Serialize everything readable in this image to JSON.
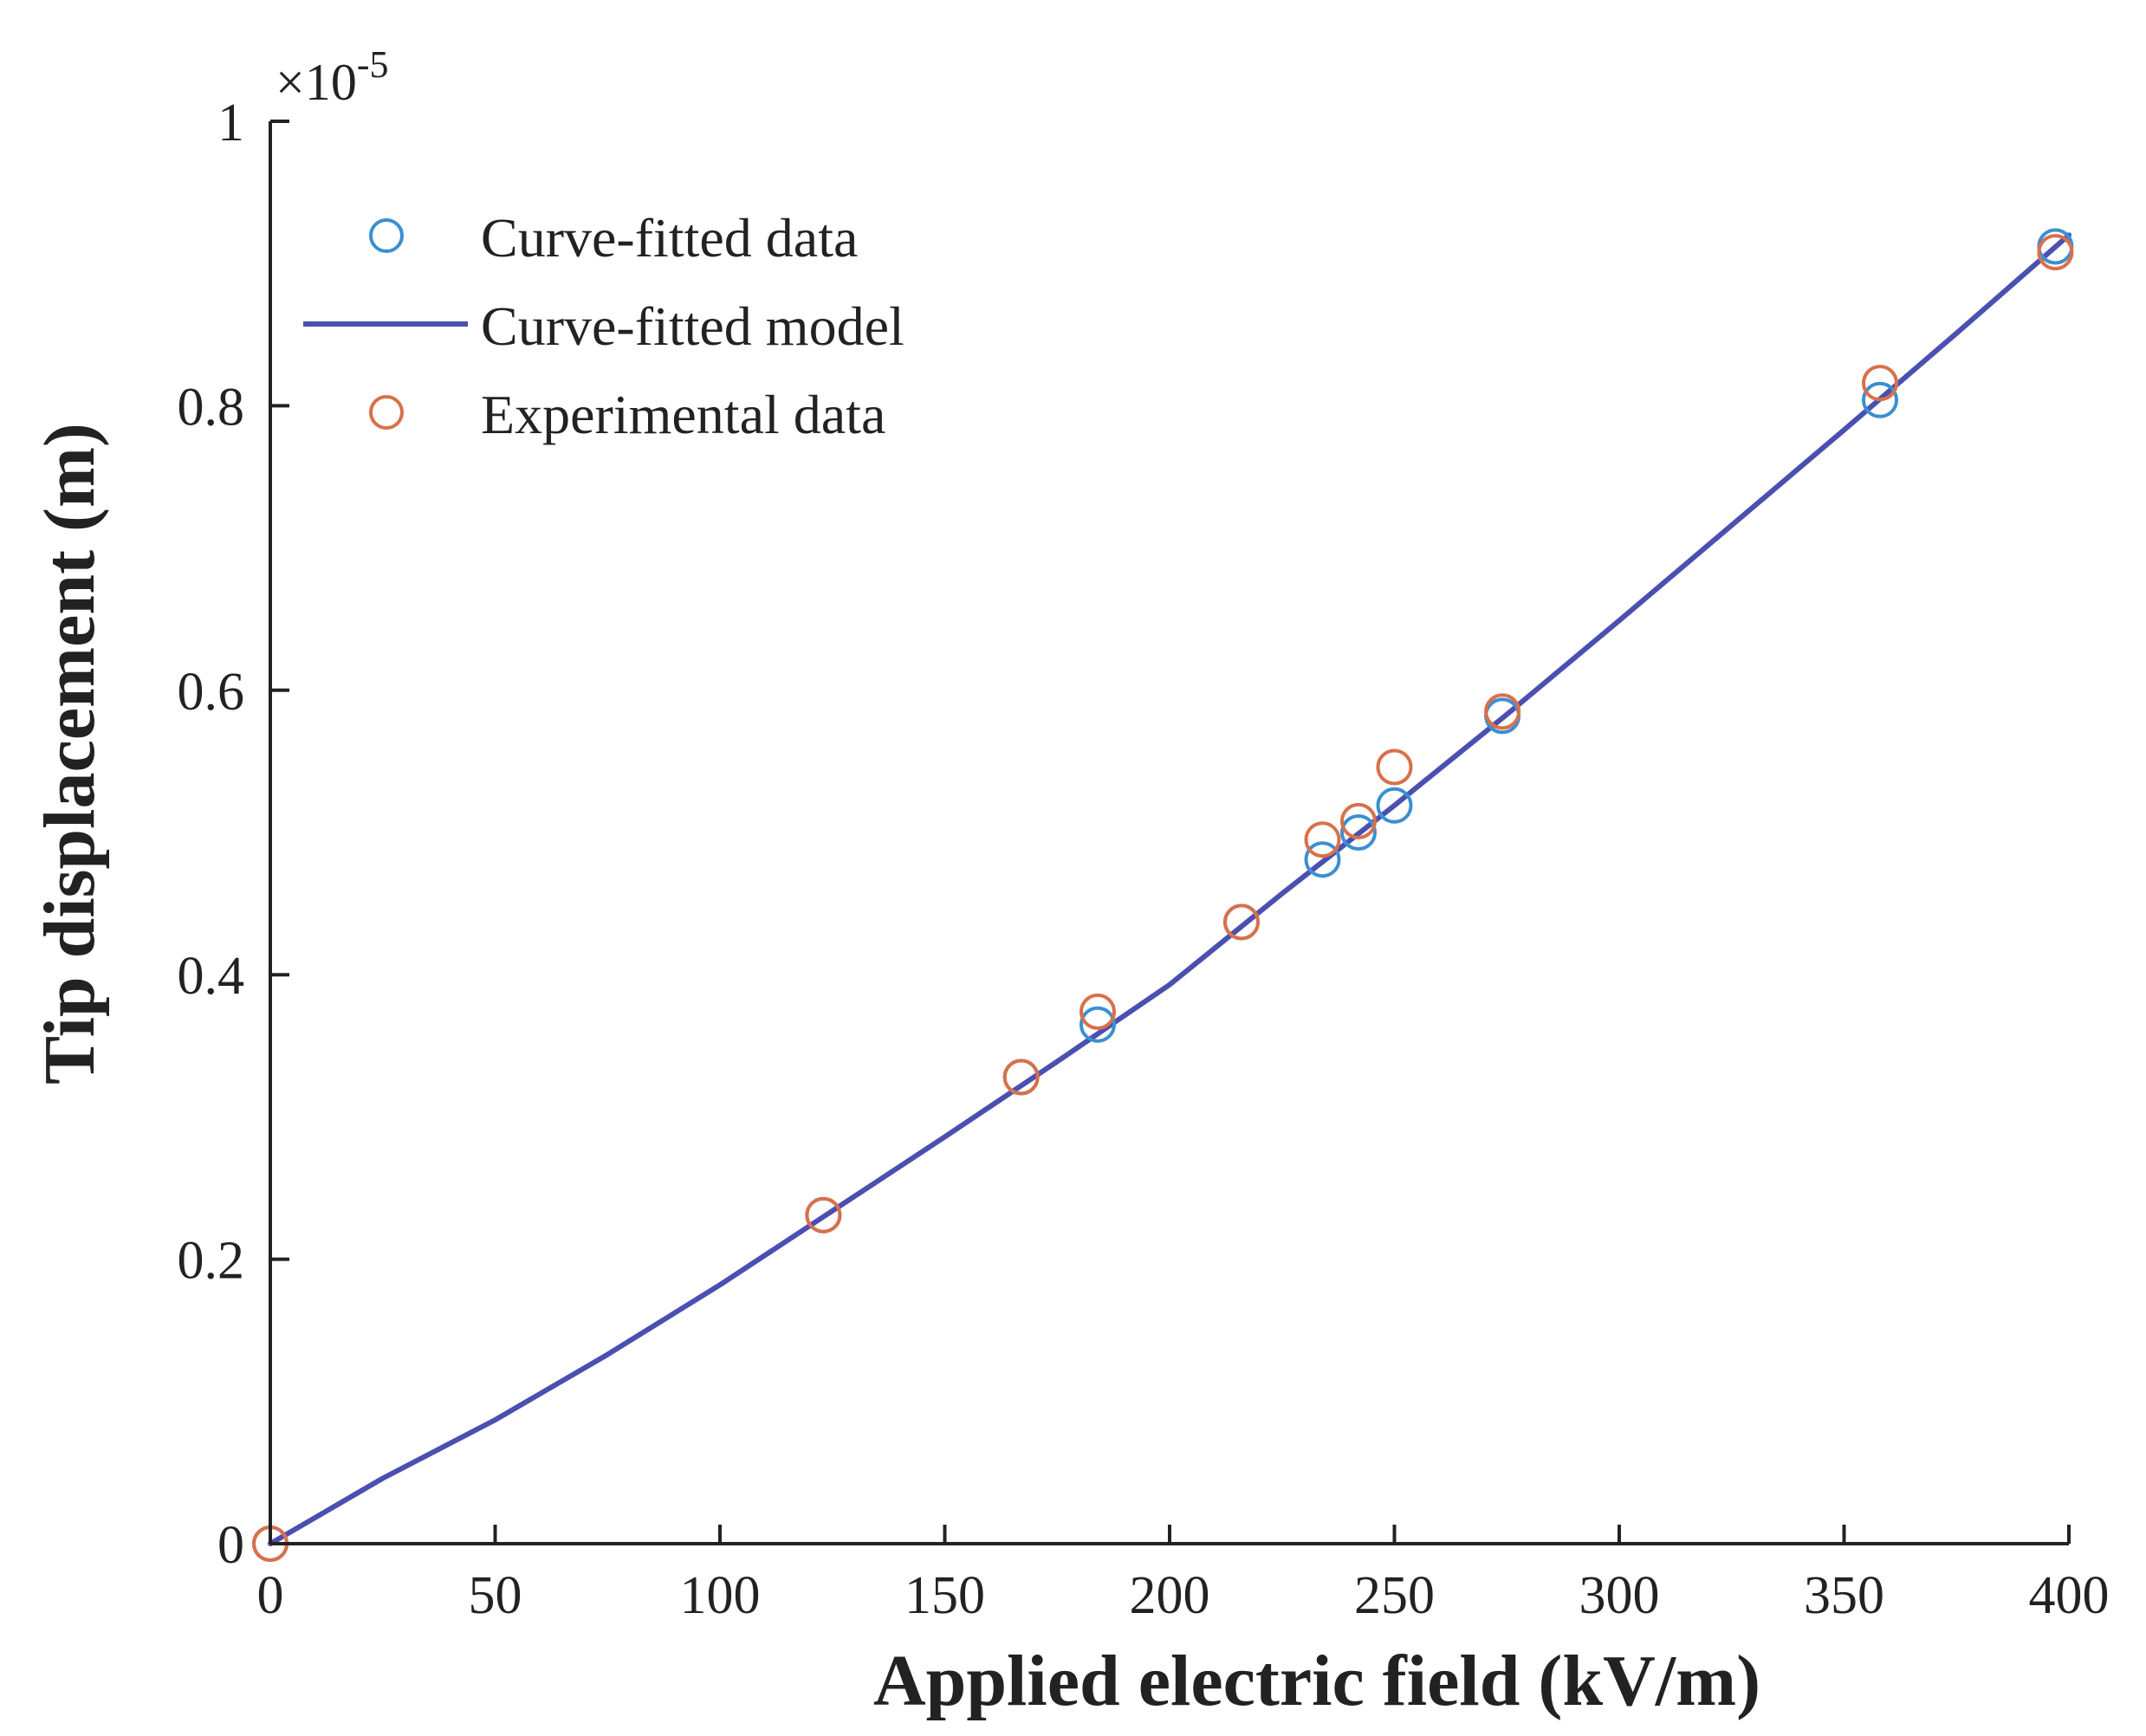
{
  "chart_data": {
    "type": "scatter",
    "xlabel": "Applied electric field (kV/m)",
    "ylabel": "Tip displacement (m)",
    "xlim": [
      0,
      400
    ],
    "ylim": [
      0,
      1
    ],
    "y_multiplier_base": "×10",
    "y_multiplier_exponent": "-5",
    "grid": false,
    "legend_position": "top-left",
    "xticks": [
      "0",
      "50",
      "100",
      "150",
      "200",
      "250",
      "300",
      "350",
      "400"
    ],
    "yticks": [
      "0",
      "0.2",
      "0.4",
      "0.6",
      "0.8",
      "1"
    ],
    "series": [
      {
        "name": "Curve-fitted data",
        "kind": "markers",
        "color": "#3b8fd0",
        "x": [
          0,
          123,
          167,
          184,
          216,
          234,
          242,
          250,
          274,
          358,
          397
        ],
        "y": [
          0,
          0.231,
          0.328,
          0.365,
          0.437,
          0.481,
          0.5,
          0.519,
          0.582,
          0.804,
          0.912
        ]
      },
      {
        "name": "Curve-fitted model",
        "kind": "line",
        "color": "#4a4fb0",
        "x": [
          0,
          25,
          50,
          75,
          100,
          125,
          150,
          175,
          200,
          225,
          250,
          275,
          300,
          325,
          350,
          375,
          400
        ],
        "y": [
          0,
          0.046,
          0.087,
          0.133,
          0.182,
          0.234,
          0.286,
          0.339,
          0.393,
          0.457,
          0.519,
          0.583,
          0.649,
          0.716,
          0.783,
          0.851,
          0.92
        ]
      },
      {
        "name": "Experimental data",
        "kind": "markers",
        "color": "#d9704a",
        "x": [
          0,
          123,
          167,
          184,
          216,
          234,
          242,
          250,
          274,
          358,
          397
        ],
        "y": [
          0,
          0.231,
          0.328,
          0.374,
          0.437,
          0.495,
          0.508,
          0.546,
          0.585,
          0.816,
          0.908
        ]
      }
    ]
  }
}
